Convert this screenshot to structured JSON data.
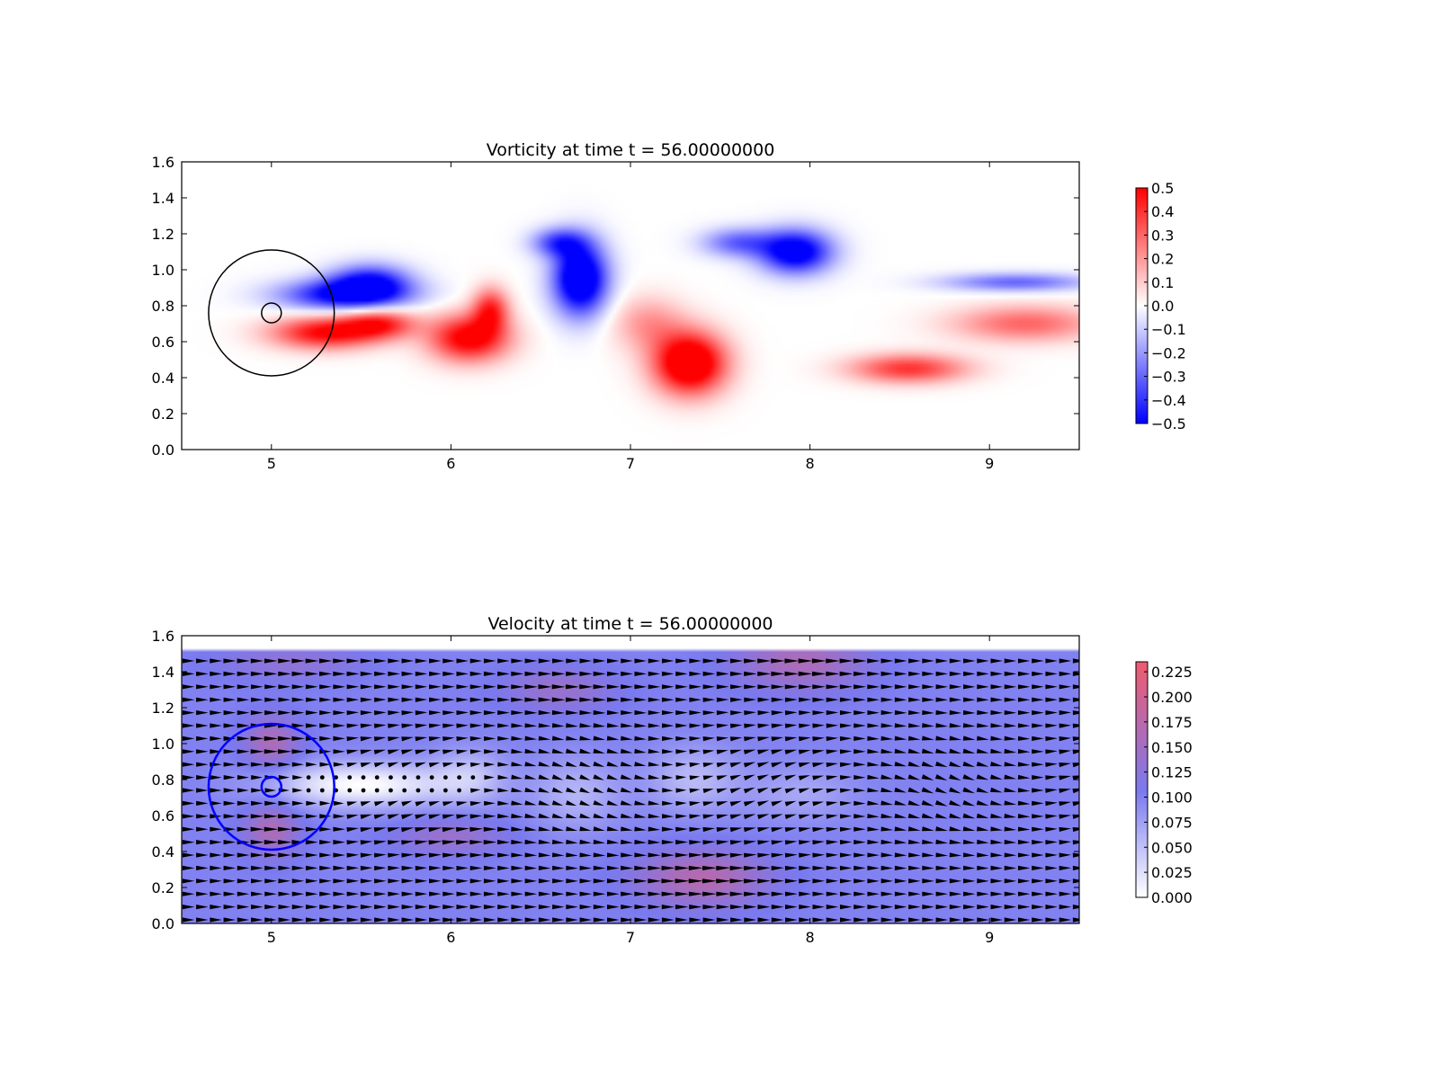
{
  "chart_data": [
    {
      "type": "heatmap",
      "title": "Vorticity at time t =    56.00000000",
      "xlabel": "",
      "ylabel": "",
      "xlim": [
        4.5,
        9.5
      ],
      "ylim": [
        0.0,
        1.6
      ],
      "xticks": [
        5,
        6,
        7,
        8,
        9
      ],
      "xtick_labels": [
        "5",
        "6",
        "7",
        "8",
        "9"
      ],
      "yticks": [
        0.0,
        0.2,
        0.4,
        0.6,
        0.8,
        1.0,
        1.2,
        1.4,
        1.6
      ],
      "ytick_labels": [
        "0.0",
        "0.2",
        "0.4",
        "0.6",
        "0.8",
        "1.0",
        "1.2",
        "1.4",
        "1.6"
      ],
      "colormap": "blue-white-red",
      "colors": {
        "low": "#0000ff",
        "mid": "#ffffff",
        "high": "#ff0000"
      },
      "colorbar": {
        "range": [
          -0.5,
          0.5
        ],
        "ticks": [
          0.5,
          0.4,
          0.3,
          0.2,
          0.1,
          0.0,
          -0.1,
          -0.2,
          -0.3,
          -0.4,
          -0.5
        ],
        "tick_labels": [
          "0.5",
          "0.4",
          "0.3",
          "0.2",
          "0.1",
          "0.0",
          "−0.1",
          "−0.2",
          "−0.3",
          "−0.4",
          "−0.5"
        ]
      },
      "circles": [
        {
          "cx": 5.0,
          "cy": 0.76,
          "r": 0.35,
          "color": "#000000"
        },
        {
          "cx": 5.0,
          "cy": 0.76,
          "r": 0.055,
          "color": "#000000"
        }
      ],
      "vortices": [
        {
          "x": 5.4,
          "y": 0.86,
          "sx": 0.35,
          "sy": 0.085,
          "value": -0.5
        },
        {
          "x": 5.55,
          "y": 0.93,
          "sx": 0.22,
          "sy": 0.1,
          "value": -0.45
        },
        {
          "x": 5.3,
          "y": 0.65,
          "sx": 0.3,
          "sy": 0.09,
          "value": 0.5
        },
        {
          "x": 5.6,
          "y": 0.7,
          "sx": 0.2,
          "sy": 0.08,
          "value": 0.4
        },
        {
          "x": 6.1,
          "y": 0.62,
          "sx": 0.22,
          "sy": 0.13,
          "value": 0.55
        },
        {
          "x": 6.22,
          "y": 0.78,
          "sx": 0.1,
          "sy": 0.12,
          "value": 0.4
        },
        {
          "x": 6.72,
          "y": 0.95,
          "sx": 0.15,
          "sy": 0.2,
          "value": -0.7
        },
        {
          "x": 6.6,
          "y": 1.15,
          "sx": 0.15,
          "sy": 0.08,
          "value": -0.35
        },
        {
          "x": 7.33,
          "y": 0.48,
          "sx": 0.2,
          "sy": 0.17,
          "value": 0.7
        },
        {
          "x": 7.1,
          "y": 0.7,
          "sx": 0.2,
          "sy": 0.15,
          "value": 0.2
        },
        {
          "x": 7.92,
          "y": 1.1,
          "sx": 0.2,
          "sy": 0.12,
          "value": -0.6
        },
        {
          "x": 7.6,
          "y": 1.15,
          "sx": 0.2,
          "sy": 0.08,
          "value": -0.3
        },
        {
          "x": 8.55,
          "y": 0.45,
          "sx": 0.32,
          "sy": 0.08,
          "value": 0.4
        },
        {
          "x": 9.2,
          "y": 0.7,
          "sx": 0.4,
          "sy": 0.1,
          "value": 0.3
        },
        {
          "x": 9.15,
          "y": 0.93,
          "sx": 0.4,
          "sy": 0.05,
          "value": -0.3
        }
      ]
    },
    {
      "type": "heatmap",
      "subtype": "quiver",
      "title": "Velocity at time t =    56.00000000",
      "xlabel": "",
      "ylabel": "",
      "xlim": [
        4.5,
        9.5
      ],
      "ylim": [
        0.0,
        1.6
      ],
      "field_ylim": [
        0.0,
        1.52
      ],
      "xticks": [
        5,
        6,
        7,
        8,
        9
      ],
      "xtick_labels": [
        "5",
        "6",
        "7",
        "8",
        "9"
      ],
      "yticks": [
        0.0,
        0.2,
        0.4,
        0.6,
        0.8,
        1.0,
        1.2,
        1.4,
        1.6
      ],
      "ytick_labels": [
        "0.0",
        "0.2",
        "0.4",
        "0.6",
        "0.8",
        "1.0",
        "1.2",
        "1.4",
        "1.6"
      ],
      "colormap": "white-blue-red",
      "colors": {
        "low": "#ffffff",
        "mid": "#7a7af0",
        "high": "#f05a6e"
      },
      "background_speed": 0.1,
      "colorbar": {
        "range": [
          0.0,
          0.235
        ],
        "ticks": [
          0.225,
          0.2,
          0.175,
          0.15,
          0.125,
          0.1,
          0.075,
          0.05,
          0.025,
          0.0
        ],
        "tick_labels": [
          "0.225",
          "0.200",
          "0.175",
          "0.150",
          "0.125",
          "0.100",
          "0.075",
          "0.050",
          "0.025",
          "0.000"
        ]
      },
      "circles": [
        {
          "cx": 5.0,
          "cy": 0.76,
          "r": 0.35,
          "color": "#0000ff"
        },
        {
          "cx": 5.0,
          "cy": 0.76,
          "r": 0.055,
          "color": "#0000ff"
        }
      ],
      "wake": [
        {
          "x": 5.5,
          "y": 0.77,
          "sx": 0.5,
          "sy": 0.12,
          "dv": -0.1
        },
        {
          "x": 6.1,
          "y": 0.82,
          "sx": 0.2,
          "sy": 0.15,
          "dv": -0.045
        },
        {
          "x": 6.7,
          "y": 0.72,
          "sx": 0.25,
          "sy": 0.2,
          "dv": -0.04
        },
        {
          "x": 7.35,
          "y": 0.8,
          "sx": 0.25,
          "sy": 0.18,
          "dv": -0.045
        },
        {
          "x": 7.95,
          "y": 0.72,
          "sx": 0.3,
          "sy": 0.15,
          "dv": -0.03
        },
        {
          "x": 5.0,
          "y": 1.0,
          "sx": 0.15,
          "sy": 0.15,
          "dv": 0.06
        },
        {
          "x": 5.0,
          "y": 0.52,
          "sx": 0.15,
          "sy": 0.15,
          "dv": 0.06
        },
        {
          "x": 7.4,
          "y": 0.25,
          "sx": 0.35,
          "sy": 0.15,
          "dv": 0.07
        },
        {
          "x": 7.95,
          "y": 1.45,
          "sx": 0.35,
          "sy": 0.15,
          "dv": 0.06
        },
        {
          "x": 6.6,
          "y": 1.3,
          "sx": 0.3,
          "sy": 0.12,
          "dv": 0.04
        },
        {
          "x": 6.0,
          "y": 0.48,
          "sx": 0.3,
          "sy": 0.1,
          "dv": 0.04
        },
        {
          "x": 5.1,
          "y": 1.45,
          "sx": 0.4,
          "sy": 0.1,
          "dv": 0.03
        }
      ]
    }
  ]
}
